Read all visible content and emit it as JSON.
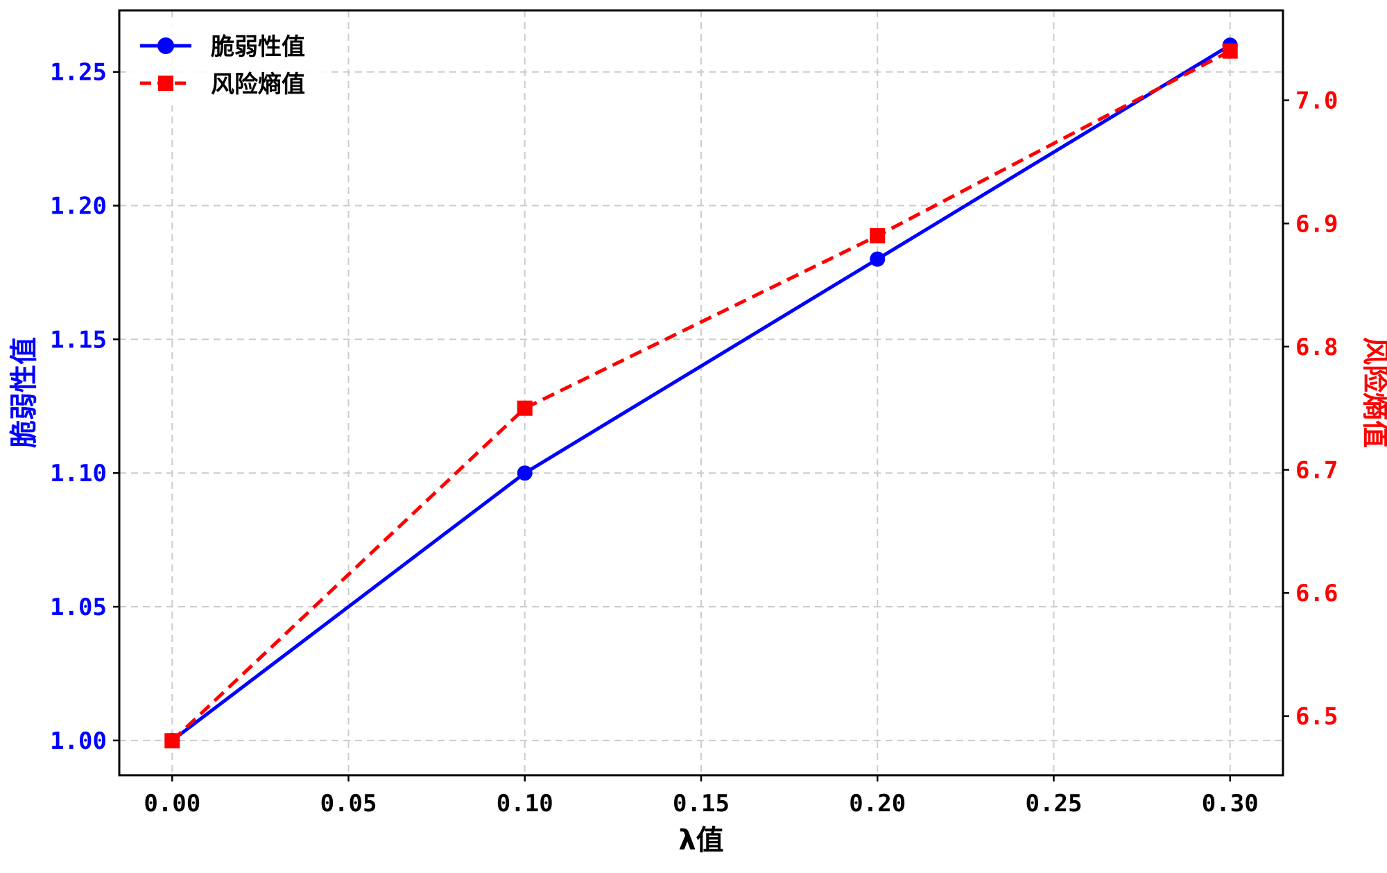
{
  "chart_data": {
    "type": "line",
    "x": [
      0.0,
      0.1,
      0.2,
      0.3
    ],
    "xlabel": "λ值",
    "xlim": [
      -0.015,
      0.315
    ],
    "xticks": [
      "0.00",
      "0.05",
      "0.10",
      "0.15",
      "0.20",
      "0.25",
      "0.30"
    ],
    "grid": true,
    "legend_position": "top-left",
    "left_axis": {
      "label": "脆弱性值",
      "color": "#0000ff",
      "ylim": [
        0.987,
        1.273
      ],
      "ticks": [
        "1.00",
        "1.05",
        "1.10",
        "1.15",
        "1.20",
        "1.25"
      ]
    },
    "right_axis": {
      "label": "风险熵值",
      "color": "#ff0000",
      "ylim": [
        6.452,
        7.073
      ],
      "ticks": [
        "6.5",
        "6.6",
        "6.7",
        "6.8",
        "6.9",
        "7.0"
      ]
    },
    "series": [
      {
        "name": "脆弱性值",
        "axis": "left",
        "color": "#0000ff",
        "line_style": "solid",
        "marker": "circle",
        "values": [
          1.0,
          1.1,
          1.18,
          1.26
        ]
      },
      {
        "name": "风险熵值",
        "axis": "right",
        "color": "#ff0000",
        "line_style": "dashed",
        "marker": "square",
        "values": [
          6.48,
          6.75,
          6.89,
          7.04
        ]
      }
    ]
  }
}
